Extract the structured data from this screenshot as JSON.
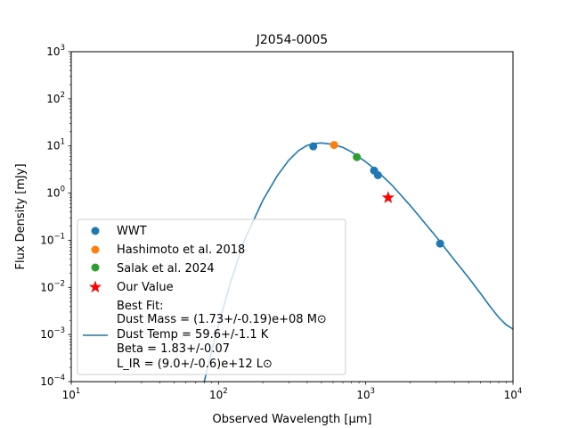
{
  "chart_data": {
    "type": "scatter",
    "title": "J2054-0005",
    "xlabel": "Observed Wavelength [μm]",
    "ylabel": "Flux Density [mJy]",
    "xscale": "log",
    "yscale": "log",
    "xlim": [
      10,
      10000
    ],
    "ylim": [
      0.0001,
      1000
    ],
    "x_ticks": [
      {
        "value": 10,
        "label": "10",
        "exp": "1"
      },
      {
        "value": 100,
        "label": "10",
        "exp": "2"
      },
      {
        "value": 1000,
        "label": "10",
        "exp": "3"
      },
      {
        "value": 10000,
        "label": "10",
        "exp": "4"
      }
    ],
    "y_ticks": [
      {
        "value": 0.0001,
        "label": "10",
        "exp": "−4"
      },
      {
        "value": 0.001,
        "label": "10",
        "exp": "−3"
      },
      {
        "value": 0.01,
        "label": "10",
        "exp": "−2"
      },
      {
        "value": 0.1,
        "label": "10",
        "exp": "−1"
      },
      {
        "value": 1,
        "label": "10",
        "exp": "0"
      },
      {
        "value": 10,
        "label": "10",
        "exp": "1"
      },
      {
        "value": 100,
        "label": "10",
        "exp": "2"
      },
      {
        "value": 1000,
        "label": "10",
        "exp": "3"
      }
    ],
    "grid": false,
    "legend_position": "lower-left",
    "series": [
      {
        "name": "WWT",
        "marker": "circle",
        "color": "#1f77b4",
        "points": [
          {
            "x": 440,
            "y": 9.8
          },
          {
            "x": 1140,
            "y": 3.0
          },
          {
            "x": 1210,
            "y": 2.4
          },
          {
            "x": 3200,
            "y": 0.085
          }
        ]
      },
      {
        "name": "Hashimoto et al. 2018",
        "marker": "circle",
        "color": "#ff7f0e",
        "points": [
          {
            "x": 610,
            "y": 10.5
          }
        ]
      },
      {
        "name": "Salak et al. 2024",
        "marker": "circle",
        "color": "#2ca02c",
        "points": [
          {
            "x": 870,
            "y": 5.8
          }
        ]
      },
      {
        "name": "Our Value",
        "marker": "star",
        "color": "#ff0000",
        "points": [
          {
            "x": 1420,
            "y": 0.8
          }
        ]
      }
    ],
    "fit": {
      "name": "Best Fit:",
      "type": "line",
      "color": "#1f77b4",
      "dust_mass_text": "Dust Mass = (1.73+/-0.19)e+08 M⊙",
      "dust_temp_text": "Dust Temp = 59.6+/-1.1 K",
      "beta_text": "Beta = 1.83+/-0.07",
      "lir_text": "L_IR = (9.0+/-0.6)e+12 L⊙",
      "points": [
        {
          "x": 80,
          "y": 0.0001
        },
        {
          "x": 90,
          "y": 0.00045
        },
        {
          "x": 100,
          "y": 0.0016
        },
        {
          "x": 120,
          "y": 0.012
        },
        {
          "x": 150,
          "y": 0.1
        },
        {
          "x": 200,
          "y": 0.7
        },
        {
          "x": 250,
          "y": 2.3
        },
        {
          "x": 300,
          "y": 5.0
        },
        {
          "x": 350,
          "y": 8.0
        },
        {
          "x": 400,
          "y": 10.3
        },
        {
          "x": 450,
          "y": 11.3
        },
        {
          "x": 500,
          "y": 11.6
        },
        {
          "x": 600,
          "y": 10.8
        },
        {
          "x": 700,
          "y": 9.3
        },
        {
          "x": 800,
          "y": 7.5
        },
        {
          "x": 1000,
          "y": 4.6
        },
        {
          "x": 1200,
          "y": 2.9
        },
        {
          "x": 1500,
          "y": 1.5
        },
        {
          "x": 2000,
          "y": 0.55
        },
        {
          "x": 3000,
          "y": 0.12
        },
        {
          "x": 4000,
          "y": 0.038
        },
        {
          "x": 5000,
          "y": 0.016
        },
        {
          "x": 6000,
          "y": 0.0075
        },
        {
          "x": 7000,
          "y": 0.0039
        },
        {
          "x": 8000,
          "y": 0.0023
        },
        {
          "x": 9000,
          "y": 0.0016
        },
        {
          "x": 10000,
          "y": 0.0013
        }
      ]
    }
  }
}
